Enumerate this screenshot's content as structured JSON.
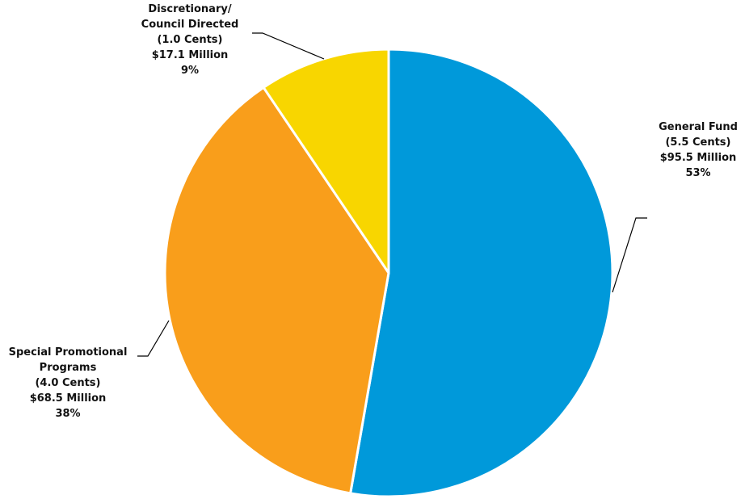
{
  "chart_data": {
    "type": "pie",
    "slices": [
      {
        "name": "General Fund",
        "cents": "(5.5 Cents)",
        "amount": "$95.5 Million",
        "percent_label": "53%",
        "value": 95.5,
        "color": "#0099DA"
      },
      {
        "name": "Special Promotional Programs",
        "cents": "(4.0 Cents)",
        "amount": "$68.5 Million",
        "percent_label": "38%",
        "value": 68.5,
        "color": "#F99E1B"
      },
      {
        "name": "Discretionary/ Council Directed",
        "cents": "(1.0 Cents)",
        "amount": "$17.1 Million",
        "percent_label": "9%",
        "value": 17.1,
        "color": "#F8D600"
      }
    ],
    "labels": {
      "general": {
        "line1": "General Fund",
        "line2": "(5.5 Cents)",
        "line3": "$95.5 Million",
        "line4": "53%"
      },
      "special": {
        "line1": "Special Promotional",
        "line2": "Programs",
        "line3": "(4.0 Cents)",
        "line4": "$68.5 Million",
        "line5": "38%"
      },
      "discretionary": {
        "line1": "Discretionary/",
        "line2": "Council Directed",
        "line3": "(1.0 Cents)",
        "line4": "$17.1 Million",
        "line5": "9%"
      }
    },
    "start_angle": "12 o'clock",
    "direction": "clockwise",
    "slice_border_color": "#FFFFFF",
    "leader_line_color": "#000000"
  }
}
